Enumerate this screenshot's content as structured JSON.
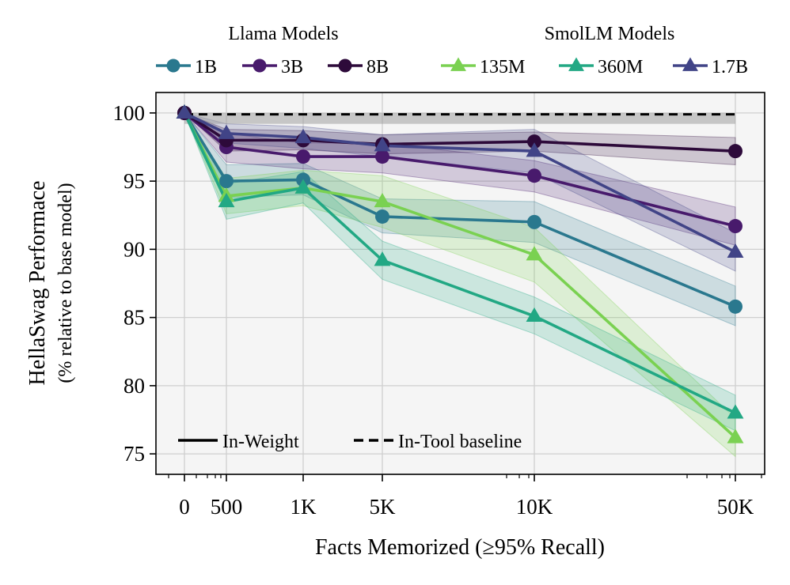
{
  "chart_data": {
    "type": "line",
    "title": "",
    "xlabel": "Facts Memorized (≥95% Recall)",
    "ylabel": "HellaSwag Performace",
    "ylabel_sub": "(% relative to base model)",
    "x_positions": [
      0,
      1,
      2,
      3,
      4,
      5
    ],
    "x": [
      "0",
      "500",
      "1K",
      "5K",
      "10K",
      "50K"
    ],
    "ylim": [
      73.5,
      101.5
    ],
    "yticks": [
      75,
      80,
      85,
      90,
      95,
      100
    ],
    "grid": true,
    "legend_groups": [
      {
        "title": "Llama Models",
        "entries": [
          "1B",
          "3B",
          "8B"
        ]
      },
      {
        "title": "SmolLM Models",
        "entries": [
          "135M",
          "360M",
          "1.7B"
        ]
      }
    ],
    "style_legend": [
      {
        "label": "In-Weight",
        "dash": "solid"
      },
      {
        "label": "In-Tool baseline",
        "dash": "dashed"
      }
    ],
    "baseline": {
      "name": "In-Tool baseline",
      "value": 99.9,
      "band": [
        99.2,
        100.0
      ]
    },
    "series": [
      {
        "name": "1B",
        "group": "Llama Models",
        "marker": "circle",
        "color": "#2a788e",
        "values": [
          100,
          95.0,
          95.1,
          92.4,
          92.0,
          85.8
        ],
        "lower": [
          100,
          93.8,
          94.0,
          91.2,
          90.5,
          84.4
        ],
        "upper": [
          100,
          96.2,
          96.3,
          93.7,
          93.5,
          87.3
        ]
      },
      {
        "name": "3B",
        "group": "Llama Models",
        "marker": "circle",
        "color": "#481a6c",
        "values": [
          100,
          97.5,
          96.8,
          96.8,
          95.4,
          91.7
        ],
        "lower": [
          100,
          96.4,
          95.9,
          95.6,
          94.2,
          90.3
        ],
        "upper": [
          100,
          98.5,
          97.8,
          97.8,
          96.5,
          93.1
        ]
      },
      {
        "name": "8B",
        "group": "Llama Models",
        "marker": "circle",
        "color": "#2d0a3a",
        "values": [
          100,
          98.0,
          98.0,
          97.7,
          97.9,
          97.2
        ],
        "lower": [
          100,
          97.2,
          97.3,
          97.0,
          97.2,
          96.2
        ],
        "upper": [
          100,
          98.8,
          98.7,
          98.4,
          98.6,
          98.2
        ]
      },
      {
        "name": "135M",
        "group": "SmolLM Models",
        "marker": "triangle",
        "color": "#7ad151",
        "values": [
          100,
          93.9,
          94.5,
          93.5,
          89.6,
          76.2
        ],
        "lower": [
          100,
          92.6,
          93.2,
          91.6,
          87.6,
          74.8
        ],
        "upper": [
          100,
          95.2,
          95.8,
          95.4,
          91.6,
          77.6
        ]
      },
      {
        "name": "360M",
        "group": "SmolLM Models",
        "marker": "triangle",
        "color": "#22a884",
        "values": [
          100,
          93.5,
          94.5,
          89.2,
          85.1,
          78.0
        ],
        "lower": [
          100,
          92.2,
          93.4,
          87.8,
          83.8,
          76.7
        ],
        "upper": [
          100,
          94.8,
          95.7,
          90.6,
          86.5,
          79.3
        ]
      },
      {
        "name": "1.7B",
        "group": "SmolLM Models",
        "marker": "triangle",
        "color": "#414487",
        "values": [
          100,
          98.5,
          98.2,
          97.6,
          97.2,
          89.8
        ],
        "lower": [
          100,
          97.8,
          97.4,
          96.8,
          95.6,
          88.4
        ],
        "upper": [
          100,
          99.2,
          99.0,
          98.4,
          98.8,
          91.2
        ]
      }
    ]
  }
}
